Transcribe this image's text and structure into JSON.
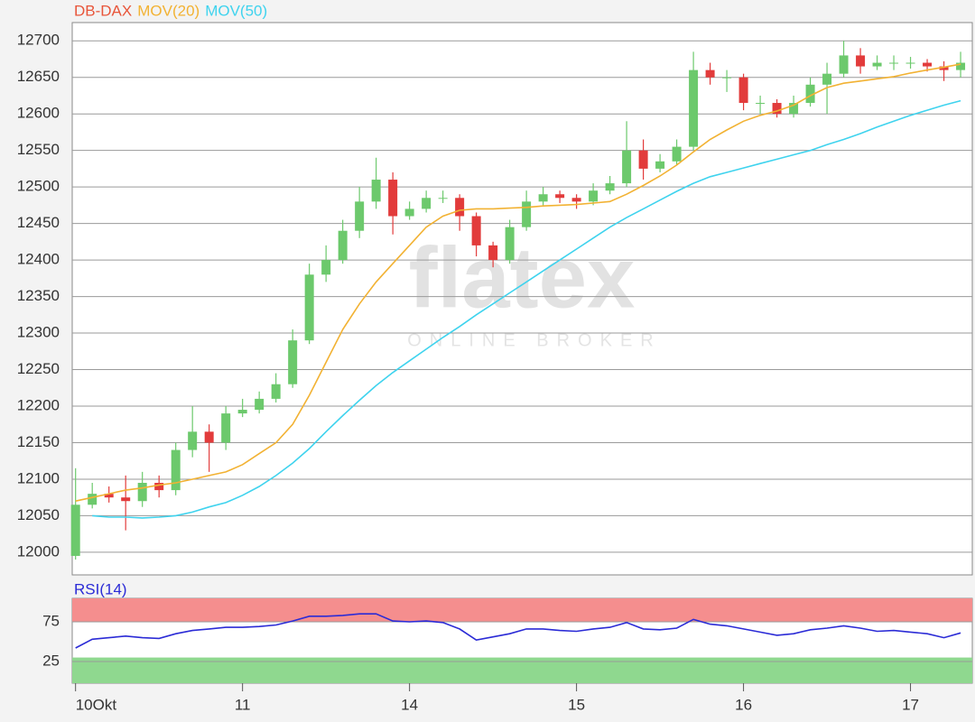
{
  "chart_data": [
    {
      "type": "candlestick",
      "watermark": {
        "title": "flatex",
        "subtitle": "ONLINE BROKER"
      },
      "x": [
        0,
        1,
        2,
        3,
        4,
        5,
        6,
        7,
        8,
        9,
        10,
        11,
        12,
        13,
        14,
        15,
        16,
        17,
        18,
        19,
        20,
        21,
        22,
        23,
        24,
        25,
        26,
        27,
        28,
        29,
        30,
        31,
        32,
        33,
        34,
        35,
        36,
        37,
        38,
        39,
        40,
        41,
        42,
        43,
        44,
        45,
        46,
        47,
        48,
        49,
        50,
        51,
        52,
        53
      ],
      "xlim": [
        -0.2,
        53.7
      ],
      "ylim": [
        11969,
        12725
      ],
      "yticks": [
        12000,
        12050,
        12100,
        12150,
        12200,
        12250,
        12300,
        12350,
        12400,
        12450,
        12500,
        12550,
        12600,
        12650,
        12700
      ],
      "grid": true,
      "series": [
        {
          "name": "DB-DAX",
          "color": "#e8553a",
          "up_color": "#6cc96c",
          "down_color": "#e23b3b",
          "open": [
            11995,
            12065,
            12080,
            12075,
            12070,
            12095,
            12085,
            12140,
            12165,
            12150,
            12190,
            12195,
            12210,
            12230,
            12290,
            12380,
            12400,
            12440,
            12480,
            12510,
            12460,
            12470,
            12485,
            12485,
            12460,
            12420,
            12400,
            12445,
            12480,
            12490,
            12485,
            12480,
            12495,
            12505,
            12550,
            12525,
            12535,
            12555,
            12660,
            12650,
            12650,
            12615,
            12615,
            12600,
            12615,
            12640,
            12655,
            12680,
            12665,
            12670,
            12670,
            12670,
            12665,
            12660
          ],
          "high": [
            12115,
            12095,
            12090,
            12105,
            12110,
            12105,
            12150,
            12200,
            12175,
            12200,
            12210,
            12220,
            12245,
            12305,
            12395,
            12420,
            12455,
            12500,
            12540,
            12520,
            12480,
            12495,
            12495,
            12490,
            12465,
            12425,
            12455,
            12495,
            12500,
            12495,
            12490,
            12505,
            12515,
            12590,
            12565,
            12545,
            12565,
            12685,
            12670,
            12660,
            12655,
            12625,
            12620,
            12625,
            12650,
            12670,
            12700,
            12690,
            12680,
            12680,
            12678,
            12675,
            12672,
            12685
          ],
          "low": [
            11990,
            12060,
            12068,
            12030,
            12062,
            12075,
            12078,
            12130,
            12110,
            12140,
            12185,
            12190,
            12205,
            12225,
            12285,
            12370,
            12395,
            12430,
            12470,
            12435,
            12455,
            12465,
            12478,
            12440,
            12405,
            12390,
            12395,
            12440,
            12475,
            12478,
            12470,
            12475,
            12490,
            12500,
            12510,
            12520,
            12530,
            12550,
            12640,
            12630,
            12605,
            12600,
            12595,
            12595,
            12610,
            12600,
            12650,
            12655,
            12660,
            12660,
            12662,
            12658,
            12645,
            12650
          ],
          "close": [
            12065,
            12080,
            12075,
            12070,
            12095,
            12085,
            12140,
            12165,
            12150,
            12190,
            12195,
            12210,
            12230,
            12290,
            12380,
            12400,
            12440,
            12480,
            12510,
            12460,
            12470,
            12485,
            12485,
            12460,
            12420,
            12400,
            12445,
            12480,
            12490,
            12485,
            12480,
            12495,
            12505,
            12550,
            12525,
            12535,
            12555,
            12660,
            12650,
            12650,
            12615,
            12615,
            12600,
            12615,
            12640,
            12655,
            12680,
            12665,
            12670,
            12670,
            12670,
            12665,
            12660,
            12670
          ]
        },
        {
          "name": "MOV(20)",
          "type": "line",
          "color": "#f2b233",
          "values": [
            12070,
            12075,
            12080,
            12085,
            12088,
            12092,
            12095,
            12100,
            12105,
            12110,
            12120,
            12135,
            12150,
            12175,
            12215,
            12260,
            12305,
            12340,
            12370,
            12395,
            12420,
            12445,
            12460,
            12468,
            12470,
            12470,
            12471,
            12472,
            12474,
            12475,
            12476,
            12478,
            12480,
            12490,
            12502,
            12515,
            12530,
            12548,
            12565,
            12578,
            12590,
            12598,
            12604,
            12612,
            12625,
            12636,
            12642,
            12645,
            12648,
            12651,
            12656,
            12660,
            12664,
            12668
          ]
        },
        {
          "name": "MOV(50)",
          "type": "line",
          "color": "#3fd3ee",
          "values": [
            null,
            12050,
            12048,
            12048,
            12047,
            12048,
            12050,
            12055,
            12062,
            12068,
            12078,
            12090,
            12105,
            12122,
            12142,
            12165,
            12187,
            12208,
            12228,
            12246,
            12262,
            12278,
            12294,
            12309,
            12325,
            12340,
            12355,
            12370,
            12385,
            12400,
            12415,
            12430,
            12445,
            12458,
            12470,
            12482,
            12494,
            12505,
            12514,
            12520,
            12526,
            12532,
            12538,
            12544,
            12550,
            12558,
            12565,
            12573,
            12582,
            12590,
            12598,
            12605,
            12612,
            12618
          ]
        }
      ]
    },
    {
      "type": "line",
      "xlim": [
        -0.2,
        53.7
      ],
      "xticks": [
        {
          "value": 0,
          "label": "10Okt"
        },
        {
          "value": 10,
          "label": "11"
        },
        {
          "value": 20,
          "label": "14"
        },
        {
          "value": 30,
          "label": "15"
        },
        {
          "value": 40,
          "label": "16"
        },
        {
          "value": 50,
          "label": "17"
        }
      ],
      "ylim": [
        -2.3,
        104.5
      ],
      "yticks": [
        25,
        75
      ],
      "overbought": 75,
      "overbought_color": "#f58e8e",
      "oversold": 30,
      "oversold_color": "#8fd88f",
      "series": [
        {
          "name": "RSI(14)",
          "color": "#2b2bd6",
          "values": [
            42,
            53,
            55,
            57,
            55,
            54,
            60,
            64,
            66,
            68,
            68,
            69,
            71,
            76,
            82,
            82,
            83,
            85,
            85,
            76,
            75,
            76,
            74,
            66,
            52,
            56,
            60,
            66,
            66,
            64,
            63,
            66,
            68,
            74,
            66,
            65,
            67,
            78,
            72,
            70,
            66,
            62,
            58,
            60,
            65,
            67,
            70,
            67,
            63,
            64,
            62,
            60,
            55,
            61
          ]
        }
      ]
    }
  ]
}
